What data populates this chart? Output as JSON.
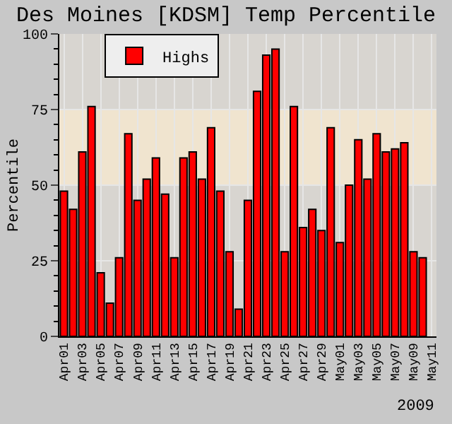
{
  "chart_data": {
    "type": "bar",
    "title": "Des Moines [KDSM] Temp Percentile",
    "ylabel": "Percentile",
    "categories": [
      "Apr01",
      null,
      "Apr03",
      null,
      "Apr05",
      null,
      "Apr07",
      null,
      "Apr09",
      null,
      "Apr11",
      null,
      "Apr13",
      null,
      "Apr15",
      null,
      "Apr17",
      null,
      "Apr19",
      null,
      "Apr21",
      null,
      "Apr23",
      null,
      "Apr25",
      null,
      "Apr27",
      null,
      "Apr29",
      null,
      "May01",
      null,
      "May03",
      null,
      "May05",
      null,
      "May07",
      null,
      "May09",
      null,
      "May11"
    ],
    "series": [
      {
        "name": "Highs",
        "color": "#ff0000",
        "values": [
          48,
          42,
          61,
          76,
          21,
          11,
          26,
          67,
          45,
          52,
          59,
          47,
          26,
          59,
          61,
          52,
          69,
          48,
          28,
          9,
          45,
          81,
          93,
          95,
          28,
          76,
          36,
          42,
          35,
          69,
          31,
          50,
          65,
          52,
          67,
          61,
          62,
          64,
          28,
          26,
          null
        ]
      }
    ],
    "ylim": [
      0,
      100
    ],
    "yticks": [
      0,
      25,
      50,
      75,
      100
    ],
    "bands": [
      {
        "axis": "y",
        "from": 50,
        "to": 75,
        "color": "#f0e4cf"
      }
    ],
    "annotations": [
      "2009"
    ],
    "grid": true,
    "legend": "top left"
  }
}
